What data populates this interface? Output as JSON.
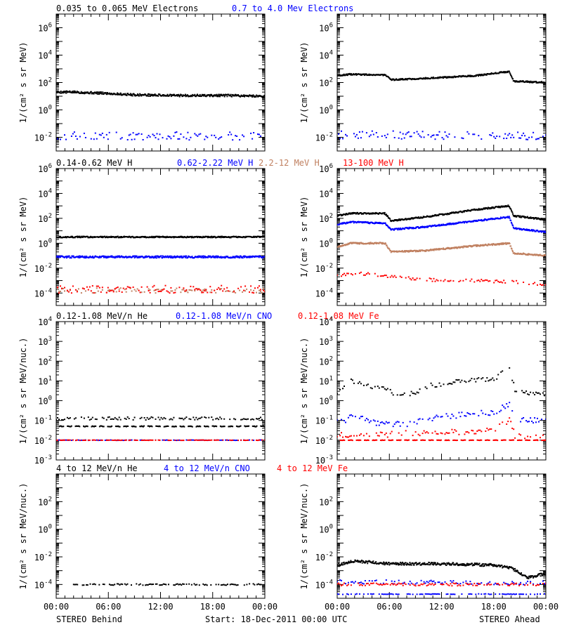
{
  "footer": {
    "left": "STEREO Behind",
    "center": "Start: 18-Dec-2011 00:00 UTC",
    "right": "STEREO Ahead"
  },
  "x_tick_labels": [
    "00:00",
    "06:00",
    "12:00",
    "18:00",
    "00:00"
  ],
  "chart_data": [
    {
      "type": "scatter",
      "row": 0,
      "side": "behind",
      "title_parts": [
        {
          "text": "0.035 to 0.065 MeV Electrons",
          "color": "#000000"
        },
        {
          "text": "0.7 to 4.0 Mev Electrons",
          "color": "#0000ff"
        }
      ],
      "ylabel": "1/(cm² s sr MeV)",
      "yscale": "log",
      "ylim_exp": [
        -3,
        7
      ],
      "ytick_exps": [
        -2,
        0,
        2,
        4,
        6
      ],
      "x_unit": "hours since start",
      "xlim": [
        0,
        24
      ],
      "series": [
        {
          "name": "0.035 to 0.065 MeV Electrons",
          "color": "#000000",
          "style": "dense",
          "log10_profile": [
            [
              0,
              1.3
            ],
            [
              2,
              1.3
            ],
            [
              6,
              1.2
            ],
            [
              9,
              1.1
            ],
            [
              14,
              1.05
            ],
            [
              20,
              1.05
            ],
            [
              24,
              1.0
            ]
          ],
          "scatter": 0.08
        },
        {
          "name": "0.7 to 4.0 Mev Electrons",
          "color": "#0000ff",
          "style": "sparse",
          "log10_profile": [
            [
              0,
              -1.9
            ],
            [
              24,
              -1.9
            ]
          ],
          "scatter": 0.3
        }
      ]
    },
    {
      "type": "scatter",
      "row": 0,
      "side": "ahead",
      "ylabel": "1/(cm² s sr MeV)",
      "yscale": "log",
      "ylim_exp": [
        -3,
        7
      ],
      "ytick_exps": [
        -2,
        0,
        2,
        4,
        6
      ],
      "x_unit": "hours since start",
      "xlim": [
        0,
        24
      ],
      "series": [
        {
          "color": "#000000",
          "style": "dense",
          "log10_profile": [
            [
              0,
              2.5
            ],
            [
              1.5,
              2.6
            ],
            [
              5.5,
              2.55
            ],
            [
              6.2,
              2.2
            ],
            [
              10,
              2.3
            ],
            [
              16,
              2.5
            ],
            [
              19,
              2.75
            ],
            [
              19.8,
              2.8
            ],
            [
              20.3,
              2.1
            ],
            [
              24,
              2.0
            ]
          ],
          "scatter": 0.05
        },
        {
          "color": "#0000ff",
          "style": "sparse",
          "log10_profile": [
            [
              0,
              -1.8
            ],
            [
              24,
              -1.9
            ]
          ],
          "scatter": 0.3
        }
      ]
    },
    {
      "type": "scatter",
      "row": 1,
      "side": "behind",
      "title_parts": [
        {
          "text": "0.14-0.62 MeV H",
          "color": "#000000"
        },
        {
          "text": "0.62-2.22 MeV H",
          "color": "#0000ff"
        },
        {
          "text": "2.2-12 MeV H",
          "color": "#c08060"
        },
        {
          "text": "13-100 MeV H",
          "color": "#ff0000"
        }
      ],
      "ylabel": "1/(cm² s sr MeV)",
      "yscale": "log",
      "ylim_exp": [
        -5,
        6
      ],
      "ytick_exps": [
        -4,
        -2,
        0,
        2,
        4,
        6
      ],
      "x_unit": "hours since start",
      "xlim": [
        0,
        24
      ],
      "series": [
        {
          "name": "0.14-0.62 MeV H",
          "color": "#000000",
          "style": "dense",
          "log10_profile": [
            [
              0,
              0.5
            ],
            [
              24,
              0.5
            ]
          ],
          "scatter": 0.05
        },
        {
          "name": "0.62-2.22 MeV H",
          "color": "#0000ff",
          "style": "dense",
          "log10_profile": [
            [
              0,
              -1.1
            ],
            [
              24,
              -1.1
            ]
          ],
          "scatter": 0.08
        },
        {
          "name": "2.2-12 MeV H",
          "color": "#c08060",
          "style": "sparse",
          "log10_profile": [
            [
              0,
              -3.8
            ],
            [
              24,
              -3.8
            ]
          ],
          "scatter": 0.2
        },
        {
          "name": "13-100 MeV H",
          "color": "#ff0000",
          "style": "sparse",
          "log10_profile": [
            [
              0,
              -3.7
            ],
            [
              24,
              -3.7
            ]
          ],
          "scatter": 0.3
        }
      ]
    },
    {
      "type": "scatter",
      "row": 1,
      "side": "ahead",
      "ylabel": "1/(cm² s sr MeV)",
      "yscale": "log",
      "ylim_exp": [
        -5,
        6
      ],
      "ytick_exps": [
        -4,
        -2,
        0,
        2,
        4,
        6
      ],
      "x_unit": "hours since start",
      "xlim": [
        0,
        24
      ],
      "series": [
        {
          "color": "#000000",
          "style": "dense",
          "log10_profile": [
            [
              0,
              2.2
            ],
            [
              1.5,
              2.4
            ],
            [
              5.5,
              2.4
            ],
            [
              6.2,
              1.8
            ],
            [
              10,
              2.1
            ],
            [
              16,
              2.7
            ],
            [
              19.8,
              3.0
            ],
            [
              20.3,
              2.2
            ],
            [
              24,
              1.9
            ]
          ],
          "scatter": 0.06
        },
        {
          "color": "#0000ff",
          "style": "dense",
          "log10_profile": [
            [
              0,
              1.5
            ],
            [
              1.5,
              1.7
            ],
            [
              5.5,
              1.6
            ],
            [
              6.2,
              1.1
            ],
            [
              10,
              1.3
            ],
            [
              16,
              1.8
            ],
            [
              19.8,
              2.1
            ],
            [
              20.3,
              1.2
            ],
            [
              24,
              0.9
            ]
          ],
          "scatter": 0.06
        },
        {
          "color": "#c08060",
          "style": "dense",
          "log10_profile": [
            [
              0,
              -0.3
            ],
            [
              1.5,
              0
            ],
            [
              5.5,
              0
            ],
            [
              6.2,
              -0.7
            ],
            [
              10,
              -0.6
            ],
            [
              16,
              -0.2
            ],
            [
              19.8,
              0
            ],
            [
              20.3,
              -0.8
            ],
            [
              24,
              -1.0
            ]
          ],
          "scatter": 0.06
        },
        {
          "color": "#ff0000",
          "style": "sparse",
          "log10_profile": [
            [
              0,
              -2.6
            ],
            [
              2,
              -2.4
            ],
            [
              5.5,
              -2.6
            ],
            [
              8,
              -2.8
            ],
            [
              12,
              -3.0
            ],
            [
              16,
              -3.0
            ],
            [
              20,
              -3.1
            ],
            [
              24,
              -3.3
            ]
          ],
          "scatter": 0.12
        }
      ]
    },
    {
      "type": "scatter",
      "row": 2,
      "side": "behind",
      "title_parts": [
        {
          "text": "0.12-1.08 MeV/n He",
          "color": "#000000"
        },
        {
          "text": "0.12-1.08 MeV/n CNO",
          "color": "#0000ff"
        },
        {
          "text": "0.12-1.08 MeV Fe",
          "color": "#ff0000"
        }
      ],
      "ylabel": "1/(cm² s sr MeV/nuc.)",
      "yscale": "log",
      "ylim_exp": [
        -3,
        4
      ],
      "ytick_exps": [
        -3,
        -2,
        -1,
        0,
        1,
        2,
        3,
        4
      ],
      "x_unit": "hours since start",
      "xlim": [
        0,
        24
      ],
      "series": [
        {
          "color": "#000000",
          "style": "dashed",
          "log10_profile": [
            [
              0,
              -1.3
            ],
            [
              24,
              -1.3
            ]
          ],
          "scatter": 0.02
        },
        {
          "color": "#000000",
          "style": "sparse",
          "log10_profile": [
            [
              0,
              -0.9
            ],
            [
              24,
              -0.9
            ]
          ],
          "scatter": 0.08
        },
        {
          "color": "#0000ff",
          "style": "sparse",
          "log10_profile": [
            [
              0,
              -2.0
            ],
            [
              24,
              -2.0
            ]
          ],
          "scatter": 0.01
        },
        {
          "color": "#ff0000",
          "style": "sparse",
          "log10_profile": [
            [
              0,
              -2.0
            ],
            [
              24,
              -2.0
            ]
          ],
          "scatter": 0.01
        }
      ]
    },
    {
      "type": "scatter",
      "row": 2,
      "side": "ahead",
      "ylabel": "1/(cm² s sr MeV/nuc.)",
      "yscale": "log",
      "ylim_exp": [
        -3,
        4
      ],
      "ytick_exps": [
        -3,
        -2,
        -1,
        0,
        1,
        2,
        3,
        4
      ],
      "x_unit": "hours since start",
      "xlim": [
        0,
        24
      ],
      "series": [
        {
          "color": "#000000",
          "style": "sparse",
          "log10_profile": [
            [
              0,
              0.3
            ],
            [
              1.5,
              1.0
            ],
            [
              2.5,
              0.9
            ],
            [
              4,
              0.7
            ],
            [
              5.5,
              0.7
            ],
            [
              6.5,
              0.3
            ],
            [
              9,
              0.4
            ],
            [
              10,
              0.7
            ],
            [
              14,
              1.0
            ],
            [
              18,
              1.1
            ],
            [
              19.8,
              1.6
            ],
            [
              20.5,
              0.5
            ],
            [
              24,
              0.3
            ]
          ],
          "scatter": 0.12
        },
        {
          "color": "#0000ff",
          "style": "sparse",
          "log10_profile": [
            [
              0,
              -1.1
            ],
            [
              2,
              -0.8
            ],
            [
              5,
              -1.2
            ],
            [
              8,
              -1.2
            ],
            [
              12,
              -0.8
            ],
            [
              18,
              -0.6
            ],
            [
              19.8,
              -0.2
            ],
            [
              20.5,
              -1.0
            ],
            [
              24,
              -1.0
            ]
          ],
          "scatter": 0.15
        },
        {
          "color": "#ff0000",
          "style": "sparse",
          "log10_profile": [
            [
              0,
              -1.7
            ],
            [
              6,
              -1.7
            ],
            [
              12,
              -1.6
            ],
            [
              18,
              -1.5
            ],
            [
              19.8,
              -1.0
            ],
            [
              20.5,
              -1.8
            ],
            [
              24,
              -1.9
            ]
          ],
          "scatter": 0.15
        },
        {
          "color": "#ff0000",
          "style": "dashed",
          "log10_profile": [
            [
              0,
              -2.0
            ],
            [
              24,
              -2.0
            ]
          ],
          "scatter": 0.01
        }
      ]
    },
    {
      "type": "scatter",
      "row": 3,
      "side": "behind",
      "title_parts": [
        {
          "text": "4 to 12 MeV/n He",
          "color": "#000000"
        },
        {
          "text": "4 to 12 MeV/n CNO",
          "color": "#0000ff"
        },
        {
          "text": "4 to 12 MeV Fe",
          "color": "#ff0000"
        }
      ],
      "ylabel": "1/(cm² s sr MeV/nuc.)",
      "yscale": "log",
      "ylim_exp": [
        -5,
        4
      ],
      "ytick_exps": [
        -4,
        -2,
        0,
        2
      ],
      "x_unit": "hours since start",
      "xlim": [
        0,
        24
      ],
      "series": [
        {
          "color": "#000000",
          "style": "sparse",
          "log10_profile": [
            [
              2,
              -4.0
            ],
            [
              24,
              -4.0
            ]
          ],
          "scatter": 0.05
        }
      ]
    },
    {
      "type": "scatter",
      "row": 3,
      "side": "ahead",
      "ylabel": "1/(cm² s sr MeV/nuc.)",
      "yscale": "log",
      "ylim_exp": [
        -5,
        4
      ],
      "ytick_exps": [
        -4,
        -2,
        0,
        2
      ],
      "x_unit": "hours since start",
      "xlim": [
        0,
        24
      ],
      "series": [
        {
          "color": "#000000",
          "style": "dense",
          "log10_profile": [
            [
              0,
              -2.6
            ],
            [
              2,
              -2.3
            ],
            [
              6,
              -2.5
            ],
            [
              12,
              -2.5
            ],
            [
              18,
              -2.6
            ],
            [
              20,
              -2.8
            ],
            [
              22,
              -3.5
            ],
            [
              24,
              -3.2
            ]
          ],
          "scatter": 0.1
        },
        {
          "color": "#0000ff",
          "style": "sparse",
          "log10_profile": [
            [
              0,
              -3.8
            ],
            [
              24,
              -3.9
            ]
          ],
          "scatter": 0.15
        },
        {
          "color": "#ff0000",
          "style": "sparse",
          "log10_profile": [
            [
              0,
              -4.0
            ],
            [
              24,
              -4.0
            ]
          ],
          "scatter": 0.1
        },
        {
          "color": "#0000ff",
          "style": "sparse",
          "log10_profile": [
            [
              0,
              -4.7
            ],
            [
              24,
              -4.7
            ]
          ],
          "scatter": 0.02
        }
      ]
    }
  ]
}
